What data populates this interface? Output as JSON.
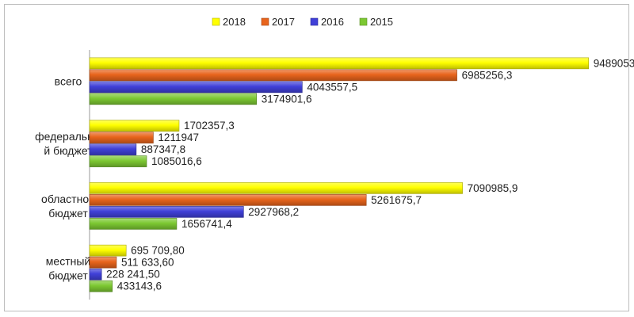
{
  "chart_data": {
    "type": "bar",
    "orientation": "horizontal",
    "legend_position": "top",
    "grid": false,
    "categories": [
      [
        "всего"
      ],
      [
        "федеральны",
        "й бюджет"
      ],
      [
        "областной",
        "бюджет"
      ],
      [
        "местный",
        "бюджет"
      ]
    ],
    "xlim": [
      0,
      9900000
    ],
    "series": [
      {
        "name": "2018",
        "color": "#ffff00",
        "values": [
          9489053,
          1702357.3,
          7090985.9,
          695709.8
        ],
        "labels": [
          "9489053",
          "1702357,3",
          "7090985,9",
          "695 709,80"
        ]
      },
      {
        "name": "2017",
        "color": "#e8641c",
        "values": [
          6985256.3,
          1211947,
          5261675.7,
          511633.6
        ],
        "labels": [
          "6985256,3",
          "1211947",
          "5261675,7",
          "511 633,60"
        ]
      },
      {
        "name": "2016",
        "color": "#4040d8",
        "values": [
          4043557.5,
          887347.8,
          2927968.2,
          228241.5
        ],
        "labels": [
          "4043557,5",
          "887347,8",
          "2927968,2",
          "228 241,50"
        ]
      },
      {
        "name": "2015",
        "color": "#7cc832",
        "values": [
          3174901.6,
          1085016.6,
          1656741.4,
          433143.6
        ],
        "labels": [
          "3174901,6",
          "1085016,6",
          "1656741,4",
          "433143,6"
        ]
      }
    ]
  }
}
